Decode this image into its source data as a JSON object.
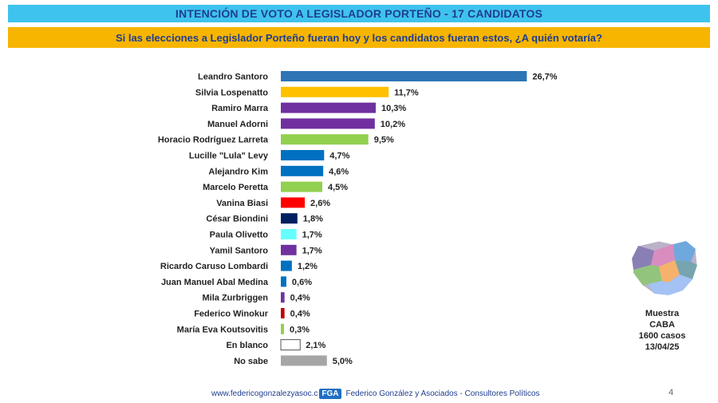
{
  "header": {
    "title": "INTENCIÓN DE VOTO A LEGISLADOR PORTEÑO - 17 CANDIDATOS",
    "question": "Si las elecciones a Legislador Porteño fueran hoy y los candidatos fueran estos, ¿A quién votaría?"
  },
  "chart_data": {
    "type": "bar",
    "orientation": "horizontal",
    "title": "",
    "xlabel": "",
    "ylabel": "",
    "xlim": [
      0,
      30
    ],
    "grid": false,
    "categories": [
      "Leandro Santoro",
      "Silvia Lospenatto",
      "Ramiro Marra",
      "Manuel Adorni",
      "Horacio Rodríguez Larreta",
      "Lucille \"Lula\" Levy",
      "Alejandro Kim",
      "Marcelo Peretta",
      "Vanina Biasi",
      "César Biondini",
      "Paula Olivetto",
      "Yamil Santoro",
      "Ricardo Caruso Lombardi",
      "Juan Manuel Abal Medina",
      "Mila Zurbriggen",
      "Federico Winokur",
      "María Eva Koutsovitis",
      "En blanco",
      "No sabe"
    ],
    "values": [
      26.7,
      11.7,
      10.3,
      10.2,
      9.5,
      4.7,
      4.6,
      4.5,
      2.6,
      1.8,
      1.7,
      1.7,
      1.2,
      0.6,
      0.4,
      0.4,
      0.3,
      2.1,
      5.0
    ],
    "value_labels": [
      "26,7%",
      "11,7%",
      "10,3%",
      "10,2%",
      "9,5%",
      "4,7%",
      "4,6%",
      "4,5%",
      "2,6%",
      "1,8%",
      "1,7%",
      "1,7%",
      "1,2%",
      "0,6%",
      "0,4%",
      "0,4%",
      "0,3%",
      "2,1%",
      "5,0%"
    ],
    "colors": [
      "#2e75b6",
      "#ffc000",
      "#7030a0",
      "#7030a0",
      "#92d050",
      "#0070c0",
      "#0070c0",
      "#92d050",
      "#ff0000",
      "#002060",
      "#66ffff",
      "#7030a0",
      "#0070c0",
      "#0070c0",
      "#7030a0",
      "#c00000",
      "#92d050",
      "#ffffff",
      "#a6a6a6"
    ]
  },
  "sample": {
    "line1": "Muestra",
    "line2": "CABA",
    "line3": "1600 casos",
    "line4": "13/04/25"
  },
  "footer": {
    "url": "www.federicogonzalezyasoc.c",
    "logo": "FGA",
    "org": "Federico González y Asociados - Consultores Políticos"
  },
  "page_number": "4"
}
